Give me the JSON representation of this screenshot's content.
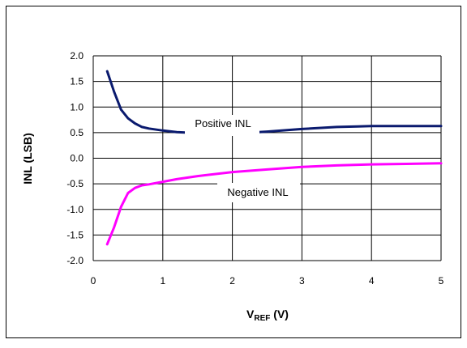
{
  "chart_data": {
    "type": "line",
    "title": "",
    "xlabel_main": "V",
    "xlabel_sub": "REF",
    "xlabel_unit": " (V)",
    "ylabel": "INL (LSB)",
    "xlim": [
      0,
      5
    ],
    "ylim": [
      -2.0,
      2.0
    ],
    "x_ticks": [
      "0",
      "1",
      "2",
      "3",
      "4",
      "5"
    ],
    "y_ticks": [
      "2.0",
      "1.5",
      "1.0",
      "0.5",
      "0.0",
      "-0.5",
      "-1.0",
      "-1.5",
      "-2.0"
    ],
    "grid": true,
    "series": [
      {
        "name": "Positive INL",
        "color": "#0a1a6e",
        "x": [
          0.2,
          0.3,
          0.4,
          0.5,
          0.6,
          0.7,
          0.8,
          1.0,
          1.2,
          1.5,
          2.0,
          2.5,
          3.0,
          3.5,
          3.8,
          4.0,
          4.5,
          5.0
        ],
        "y": [
          1.7,
          1.3,
          0.95,
          0.78,
          0.68,
          0.61,
          0.58,
          0.54,
          0.51,
          0.49,
          0.48,
          0.52,
          0.57,
          0.61,
          0.62,
          0.63,
          0.63,
          0.63
        ]
      },
      {
        "name": "Negative INL",
        "color": "#ff00ff",
        "x": [
          0.2,
          0.3,
          0.4,
          0.5,
          0.6,
          0.7,
          0.8,
          1.0,
          1.2,
          1.5,
          2.0,
          2.5,
          3.0,
          3.5,
          4.0,
          4.5,
          5.0
        ],
        "y": [
          -1.68,
          -1.35,
          -0.95,
          -0.68,
          -0.58,
          -0.53,
          -0.51,
          -0.46,
          -0.41,
          -0.35,
          -0.27,
          -0.22,
          -0.17,
          -0.14,
          -0.12,
          -0.11,
          -0.1
        ]
      }
    ]
  }
}
